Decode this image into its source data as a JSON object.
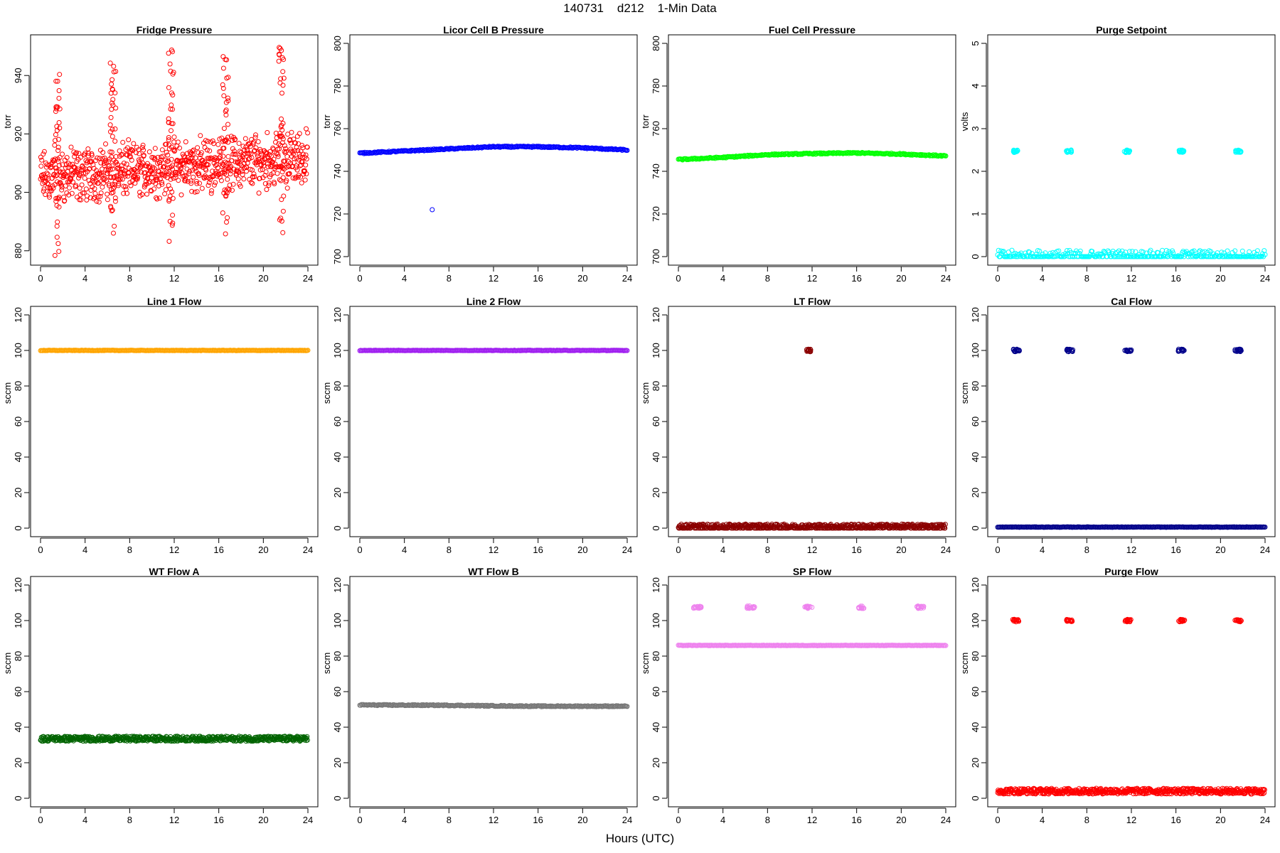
{
  "figure": {
    "title": "140731    d212    1-Min Data",
    "xlabel": "Hours (UTC)"
  },
  "chart_data": [
    {
      "type": "scatter",
      "title": "Fridge Pressure",
      "ylabel": "torr",
      "color": "#ff0000",
      "xlim": [
        0,
        24
      ],
      "ylim": [
        878,
        951
      ],
      "xticks": [
        0,
        4,
        8,
        12,
        16,
        20,
        24
      ],
      "yticks": [
        880,
        900,
        920,
        940
      ],
      "series": [
        {
          "pattern": "noise",
          "x": [
            0,
            24
          ],
          "base": [
            905,
            912
          ],
          "spread": 7,
          "spikes": [
            {
              "x": 1.5,
              "hi": 942,
              "lo": 878
            },
            {
              "x": 6.5,
              "hi": 946,
              "lo": 882
            },
            {
              "x": 11.7,
              "hi": 949,
              "lo": 881
            },
            {
              "x": 16.6,
              "hi": 947,
              "lo": 885
            },
            {
              "x": 21.6,
              "hi": 951,
              "lo": 886
            }
          ]
        }
      ]
    },
    {
      "type": "scatter",
      "title": "Licor Cell B Pressure",
      "ylabel": "torr",
      "color": "#0000ff",
      "xlim": [
        0,
        24
      ],
      "ylim": [
        700,
        800
      ],
      "xticks": [
        0,
        4,
        8,
        12,
        16,
        20,
        24
      ],
      "yticks": [
        700,
        720,
        740,
        760,
        780,
        800
      ],
      "series": [
        {
          "pattern": "curve",
          "x": [
            0,
            4,
            8,
            12,
            16,
            20,
            24
          ],
          "y": [
            748.5,
            749.5,
            750.5,
            751.5,
            751.5,
            751,
            750
          ]
        },
        {
          "pattern": "points",
          "x": [
            6.5
          ],
          "y": [
            722
          ]
        }
      ]
    },
    {
      "type": "scatter",
      "title": "Fuel Cell Pressure",
      "ylabel": "torr",
      "color": "#00ff00",
      "xlim": [
        0,
        24
      ],
      "ylim": [
        700,
        800
      ],
      "xticks": [
        0,
        4,
        8,
        12,
        16,
        20,
        24
      ],
      "yticks": [
        700,
        720,
        740,
        760,
        780,
        800
      ],
      "series": [
        {
          "pattern": "curve",
          "x": [
            0,
            4,
            8,
            12,
            16,
            20,
            24
          ],
          "y": [
            745.5,
            746.5,
            747.8,
            748.3,
            748.6,
            748.1,
            747.2
          ]
        }
      ]
    },
    {
      "type": "scatter",
      "title": "Purge Setpoint",
      "ylabel": "volts",
      "color": "#00ffff",
      "xlim": [
        0,
        24
      ],
      "ylim": [
        0,
        5
      ],
      "xticks": [
        0,
        4,
        8,
        12,
        16,
        20,
        24
      ],
      "yticks": [
        0,
        1,
        2,
        3,
        4,
        5
      ],
      "series": [
        {
          "pattern": "line",
          "x": [
            0,
            24
          ],
          "y": 0
        },
        {
          "pattern": "clusters",
          "centers": [
            1.6,
            6.4,
            11.6,
            16.5,
            21.6
          ],
          "y": 2.47,
          "width": 0.5
        }
      ]
    },
    {
      "type": "scatter",
      "title": "Line 1 Flow",
      "ylabel": "sccm",
      "color": "#ffa500",
      "xlim": [
        0,
        24
      ],
      "ylim": [
        0,
        120
      ],
      "xticks": [
        0,
        4,
        8,
        12,
        16,
        20,
        24
      ],
      "yticks": [
        0,
        20,
        40,
        60,
        80,
        100,
        120
      ],
      "series": [
        {
          "pattern": "line",
          "x": [
            0,
            24
          ],
          "y": 100
        }
      ]
    },
    {
      "type": "scatter",
      "title": "Line 2 Flow",
      "ylabel": "sccm",
      "color": "#a020f0",
      "xlim": [
        0,
        24
      ],
      "ylim": [
        0,
        120
      ],
      "xticks": [
        0,
        4,
        8,
        12,
        16,
        20,
        24
      ],
      "yticks": [
        0,
        20,
        40,
        60,
        80,
        100,
        120
      ],
      "series": [
        {
          "pattern": "line",
          "x": [
            0,
            24
          ],
          "y": 100
        }
      ]
    },
    {
      "type": "scatter",
      "title": "LT Flow",
      "ylabel": "sccm",
      "color": "#8b0000",
      "xlim": [
        0,
        24
      ],
      "ylim": [
        0,
        120
      ],
      "xticks": [
        0,
        4,
        8,
        12,
        16,
        20,
        24
      ],
      "yticks": [
        0,
        20,
        40,
        60,
        80,
        100,
        120
      ],
      "series": [
        {
          "pattern": "band",
          "x": [
            0,
            24
          ],
          "y": 0.8,
          "spread": 1.5
        },
        {
          "pattern": "clusters",
          "centers": [
            11.7
          ],
          "y": 100,
          "width": 0.4
        }
      ]
    },
    {
      "type": "scatter",
      "title": "Cal Flow",
      "ylabel": "sccm",
      "color": "#00008b",
      "xlim": [
        0,
        24
      ],
      "ylim": [
        0,
        120
      ],
      "xticks": [
        0,
        4,
        8,
        12,
        16,
        20,
        24
      ],
      "yticks": [
        0,
        20,
        40,
        60,
        80,
        100,
        120
      ],
      "series": [
        {
          "pattern": "line",
          "x": [
            0,
            24
          ],
          "y": 0.6
        },
        {
          "pattern": "clusters",
          "centers": [
            1.7,
            6.5,
            11.7,
            16.5,
            21.6
          ],
          "y": 100,
          "width": 0.6
        }
      ]
    },
    {
      "type": "scatter",
      "title": "WT Flow A",
      "ylabel": "sccm",
      "color": "#006400",
      "xlim": [
        0,
        24
      ],
      "ylim": [
        0,
        120
      ],
      "xticks": [
        0,
        4,
        8,
        12,
        16,
        20,
        24
      ],
      "yticks": [
        0,
        20,
        40,
        60,
        80,
        100,
        120
      ],
      "series": [
        {
          "pattern": "band",
          "x": [
            0,
            24
          ],
          "y": 33.5,
          "spread": 1.4
        }
      ]
    },
    {
      "type": "scatter",
      "title": "WT Flow B",
      "ylabel": "sccm",
      "color": "#787878",
      "xlim": [
        0,
        24
      ],
      "ylim": [
        0,
        120
      ],
      "xticks": [
        0,
        4,
        8,
        12,
        16,
        20,
        24
      ],
      "yticks": [
        0,
        20,
        40,
        60,
        80,
        100,
        120
      ],
      "series": [
        {
          "pattern": "curve",
          "x": [
            0,
            8,
            12,
            16,
            24
          ],
          "y": [
            52.5,
            52.3,
            52,
            51.8,
            51.8
          ]
        }
      ]
    },
    {
      "type": "scatter",
      "title": "SP Flow",
      "ylabel": "sccm",
      "color": "#ee82ee",
      "xlim": [
        0,
        24
      ],
      "ylim": [
        0,
        120
      ],
      "xticks": [
        0,
        4,
        8,
        12,
        16,
        20,
        24
      ],
      "yticks": [
        0,
        20,
        40,
        60,
        80,
        100,
        120
      ],
      "series": [
        {
          "pattern": "line",
          "x": [
            0,
            24
          ],
          "y": 86
        },
        {
          "pattern": "clusters",
          "centers": [
            1.7,
            6.5,
            11.7,
            16.5,
            21.7
          ],
          "y": 107.5,
          "width": 0.7
        }
      ]
    },
    {
      "type": "scatter",
      "title": "Purge Flow",
      "ylabel": "sccm",
      "color": "#ff0000",
      "xlim": [
        0,
        24
      ],
      "ylim": [
        0,
        120
      ],
      "xticks": [
        0,
        4,
        8,
        12,
        16,
        20,
        24
      ],
      "yticks": [
        0,
        20,
        40,
        60,
        80,
        100,
        120
      ],
      "series": [
        {
          "pattern": "band",
          "x": [
            0,
            24
          ],
          "y": 4,
          "spread": 1.6
        },
        {
          "pattern": "clusters",
          "centers": [
            1.6,
            6.4,
            11.7,
            16.5,
            21.6
          ],
          "y": 100,
          "width": 0.6
        }
      ]
    }
  ]
}
